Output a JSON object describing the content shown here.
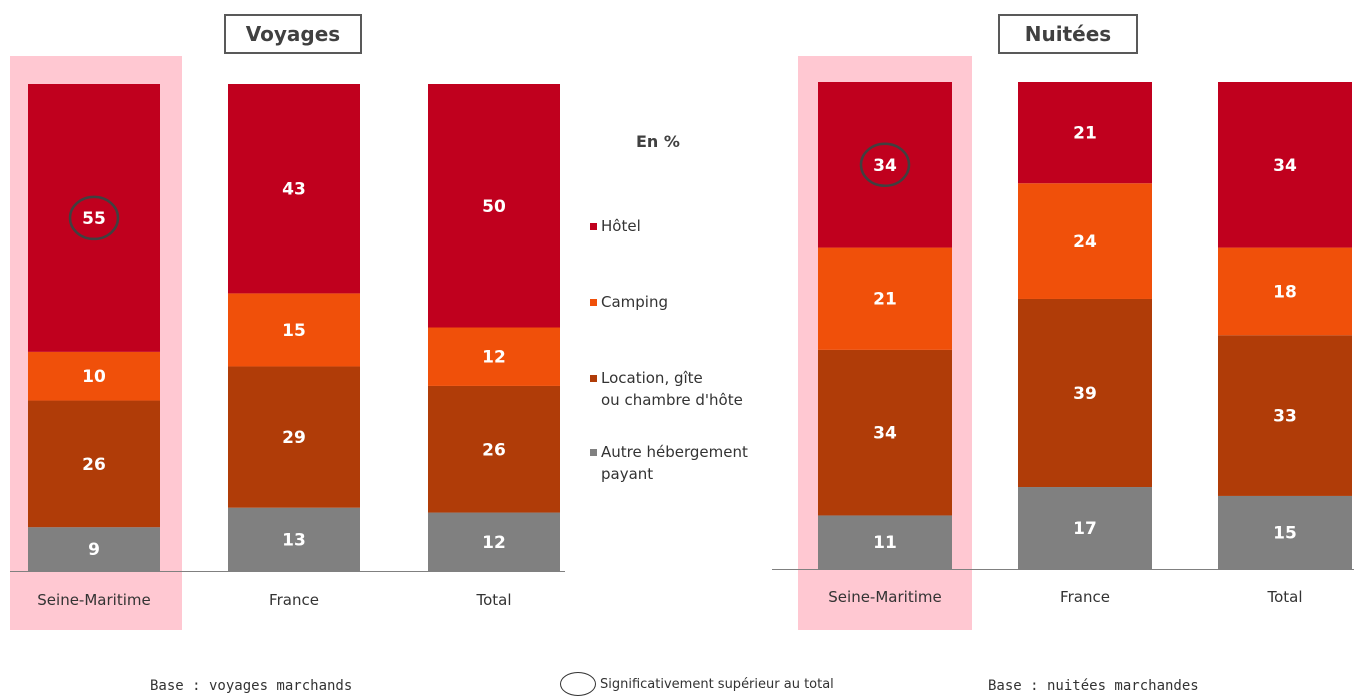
{
  "chart_data": [
    {
      "type": "bar",
      "title": "Voyages",
      "categories": [
        "Seine-Maritime",
        "France",
        "Total"
      ],
      "series": [
        {
          "name": "Hôtel",
          "values": [
            55,
            43,
            50
          ],
          "color": "#c0001e"
        },
        {
          "name": "Camping",
          "values": [
            10,
            15,
            12
          ],
          "color": "#f0500a"
        },
        {
          "name": "Location, gîte ou chambre d'hôte",
          "values": [
            26,
            29,
            26
          ],
          "color": "#b03c08"
        },
        {
          "name": "Autre hébergement payant",
          "values": [
            9,
            13,
            12
          ],
          "color": "#808080"
        }
      ],
      "highlighted_category": "Seine-Maritime",
      "circled": [
        {
          "series": "Hôtel",
          "category": "Seine-Maritime"
        }
      ],
      "footer": "Base : voyages marchands"
    },
    {
      "type": "bar",
      "title": "Nuitées",
      "categories": [
        "Seine-Maritime",
        "France",
        "Total"
      ],
      "series": [
        {
          "name": "Hôtel",
          "values": [
            34,
            21,
            34
          ],
          "color": "#c0001e"
        },
        {
          "name": "Camping",
          "values": [
            21,
            24,
            18
          ],
          "color": "#f0500a"
        },
        {
          "name": "Location, gîte ou chambre d'hôte",
          "values": [
            34,
            39,
            33
          ],
          "color": "#b03c08"
        },
        {
          "name": "Autre hébergement payant",
          "values": [
            11,
            17,
            15
          ],
          "color": "#808080"
        }
      ],
      "highlighted_category": "Seine-Maritime",
      "circled": [
        {
          "series": "Hôtel",
          "category": "Seine-Maritime"
        }
      ],
      "footer": "Base : nuitées marchandes"
    }
  ],
  "legend": {
    "title": "En %",
    "items": [
      {
        "lines": [
          "Hôtel"
        ],
        "color": "#c0001e"
      },
      {
        "lines": [
          "Camping"
        ],
        "color": "#f0500a"
      },
      {
        "lines": [
          "Location, gîte",
          "ou chambre d'hôte"
        ],
        "color": "#b03c08"
      },
      {
        "lines": [
          "Autre hébergement",
          "payant"
        ],
        "color": "#808080"
      }
    ]
  },
  "significance_note": "Significativement supérieur au total",
  "colors": {
    "highlight": "#ffc8d2",
    "hotel": "#c0001e",
    "camping": "#f0500a",
    "location": "#b03c08",
    "autre": "#808080"
  }
}
